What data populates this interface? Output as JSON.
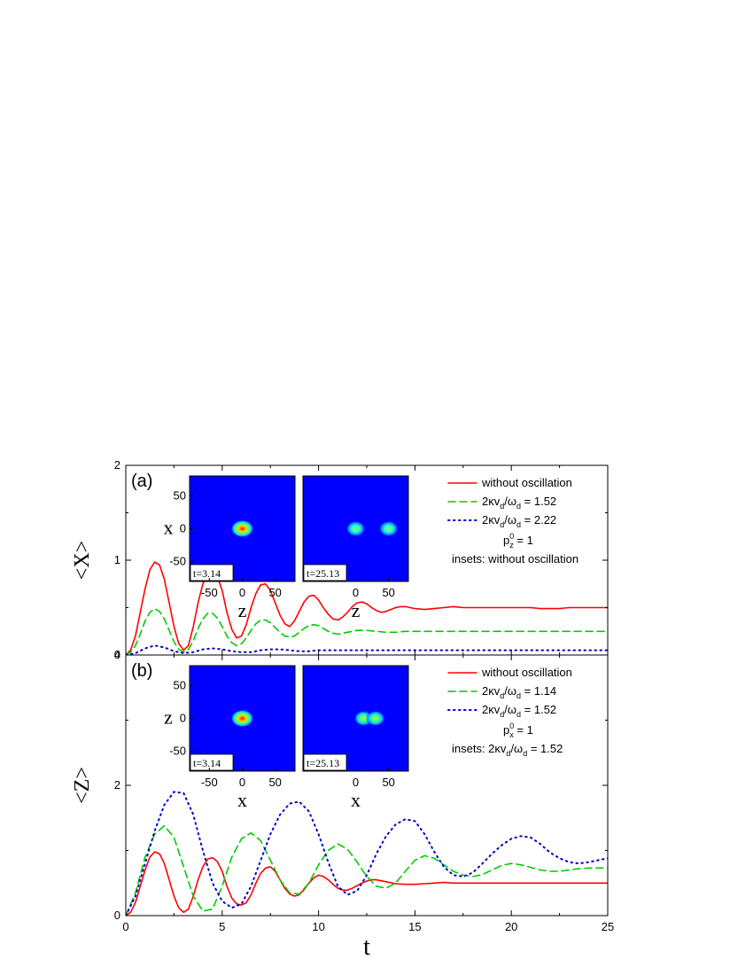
{
  "chart_data": [
    {
      "panel_label": "(a)",
      "type": "line",
      "ylabel": "<X>",
      "xlabel": "",
      "xlim": [
        0,
        25
      ],
      "ylim": [
        0,
        2
      ],
      "yticks": [
        "0",
        "1",
        "2"
      ],
      "xticks": [],
      "legend": {
        "placement": "top-right",
        "entries": [
          {
            "sym": "κ",
            "pre": "2",
            "post": "v",
            "sub": "d",
            "slash": "/ω",
            "sub2": "d",
            "value": " = 1.52"
          },
          {
            "sym": "κ",
            "pre": "2",
            "post": "v",
            "sub": "d",
            "slash": "/ω",
            "sub2": "d",
            "value": " = 2.22"
          }
        ],
        "line1": "without oscillation",
        "param_base": "p",
        "param_sub": "z",
        "param_sup": "0",
        "param_value": " = 1",
        "note": "insets: without oscillation"
      },
      "series": [
        {
          "name": "without oscillation",
          "style": "solid",
          "color": "#ff0000",
          "x": [
            0,
            0.25,
            0.5,
            0.75,
            1,
            1.25,
            1.5,
            1.75,
            2,
            2.25,
            2.5,
            2.75,
            3,
            3.25,
            3.5,
            3.75,
            4,
            4.25,
            4.5,
            4.75,
            5,
            5.25,
            5.5,
            5.75,
            6,
            6.25,
            6.5,
            6.75,
            7,
            7.25,
            7.5,
            7.75,
            8,
            8.25,
            8.5,
            8.75,
            9,
            9.25,
            9.5,
            9.75,
            10,
            10.25,
            10.5,
            10.75,
            11,
            11.25,
            11.5,
            11.75,
            12,
            12.25,
            12.5,
            12.75,
            13,
            13.25,
            13.5,
            13.75,
            14,
            14.25,
            14.5,
            14.75,
            15,
            15.5,
            16,
            16.5,
            17,
            17.5,
            18,
            18.5,
            19,
            19.5,
            20,
            20.5,
            21,
            21.5,
            22,
            22.5,
            23,
            23.5,
            24,
            24.5,
            25
          ],
          "y": [
            0,
            0.05,
            0.2,
            0.45,
            0.7,
            0.9,
            0.98,
            0.95,
            0.8,
            0.55,
            0.3,
            0.12,
            0.05,
            0.1,
            0.3,
            0.55,
            0.75,
            0.87,
            0.89,
            0.83,
            0.68,
            0.45,
            0.27,
            0.18,
            0.2,
            0.32,
            0.5,
            0.65,
            0.74,
            0.75,
            0.68,
            0.55,
            0.42,
            0.33,
            0.3,
            0.36,
            0.46,
            0.56,
            0.62,
            0.63,
            0.58,
            0.5,
            0.43,
            0.38,
            0.37,
            0.4,
            0.45,
            0.51,
            0.55,
            0.56,
            0.54,
            0.5,
            0.47,
            0.45,
            0.46,
            0.48,
            0.5,
            0.51,
            0.51,
            0.5,
            0.49,
            0.48,
            0.49,
            0.5,
            0.51,
            0.5,
            0.5,
            0.5,
            0.5,
            0.5,
            0.5,
            0.5,
            0.5,
            0.49,
            0.49,
            0.49,
            0.5,
            0.5,
            0.5,
            0.5,
            0.5
          ]
        },
        {
          "name": "2κv_d/ω_d = 1.52",
          "style": "dashed",
          "color": "#00cc00",
          "x": [
            0,
            0.25,
            0.5,
            0.75,
            1,
            1.25,
            1.5,
            1.75,
            2,
            2.25,
            2.5,
            2.75,
            3,
            3.25,
            3.5,
            3.75,
            4,
            4.25,
            4.5,
            4.75,
            5,
            5.25,
            5.5,
            5.75,
            6,
            6.25,
            6.5,
            6.75,
            7,
            7.25,
            7.5,
            7.75,
            8,
            8.25,
            8.5,
            8.75,
            9,
            9.25,
            9.5,
            9.75,
            10,
            10.25,
            10.5,
            10.75,
            11,
            11.25,
            11.5,
            11.75,
            12,
            12.5,
            13,
            13.5,
            14,
            14.5,
            15,
            15.5,
            16,
            16.5,
            17,
            17.5,
            18,
            19,
            20,
            21,
            22,
            23,
            24,
            25
          ],
          "y": [
            0,
            0.03,
            0.1,
            0.22,
            0.36,
            0.45,
            0.49,
            0.46,
            0.38,
            0.26,
            0.14,
            0.06,
            0.03,
            0.06,
            0.15,
            0.28,
            0.38,
            0.44,
            0.44,
            0.39,
            0.3,
            0.2,
            0.13,
            0.1,
            0.12,
            0.18,
            0.26,
            0.33,
            0.37,
            0.37,
            0.34,
            0.29,
            0.24,
            0.2,
            0.19,
            0.2,
            0.24,
            0.28,
            0.31,
            0.32,
            0.31,
            0.28,
            0.25,
            0.23,
            0.22,
            0.23,
            0.24,
            0.25,
            0.26,
            0.26,
            0.25,
            0.24,
            0.24,
            0.25,
            0.25,
            0.25,
            0.25,
            0.25,
            0.25,
            0.25,
            0.25,
            0.25,
            0.25,
            0.25,
            0.25,
            0.25,
            0.25,
            0.25
          ]
        },
        {
          "name": "2κv_d/ω_d = 2.22",
          "style": "dotted",
          "color": "#0000cc",
          "x": [
            0,
            0.5,
            1,
            1.5,
            2,
            2.5,
            3,
            3.5,
            4,
            4.5,
            5,
            5.5,
            6,
            6.5,
            7,
            7.5,
            8,
            8.5,
            9,
            9.5,
            10,
            11,
            12,
            13,
            14,
            15,
            16,
            17,
            18,
            19,
            20,
            21,
            22,
            23,
            24,
            25
          ],
          "y": [
            0,
            0.02,
            0.07,
            0.1,
            0.08,
            0.04,
            0.02,
            0.03,
            0.06,
            0.07,
            0.06,
            0.04,
            0.03,
            0.03,
            0.05,
            0.06,
            0.06,
            0.05,
            0.04,
            0.04,
            0.05,
            0.05,
            0.05,
            0.05,
            0.05,
            0.05,
            0.05,
            0.05,
            0.05,
            0.05,
            0.05,
            0.05,
            0.05,
            0.05,
            0.05,
            0.05
          ]
        }
      ],
      "insets": [
        {
          "time": "t=3.14",
          "xaxis": "z",
          "yaxis": "x",
          "xticks": [
            "-50",
            "0",
            "50"
          ],
          "yticks": [
            "50",
            "0",
            "-50"
          ],
          "blobs": [
            {
              "z": 0,
              "x": 0,
              "peak": 1.0
            }
          ]
        },
        {
          "time": "t=25.13",
          "xaxis": "z",
          "yaxis": "",
          "xticks": [
            "0",
            "50"
          ],
          "yticks": [],
          "blobs": [
            {
              "z": 0,
              "x": 0,
              "peak": 0.55
            },
            {
              "z": 50,
              "x": 0,
              "peak": 0.55
            }
          ]
        }
      ]
    },
    {
      "panel_label": "(b)",
      "type": "line",
      "ylabel": "<Z>",
      "xlabel": "t",
      "xlim": [
        0,
        25
      ],
      "ylim": [
        0,
        4
      ],
      "yticks": [
        "0",
        "2",
        "4"
      ],
      "xticks": [
        "0",
        "5",
        "10",
        "15",
        "20",
        "25"
      ],
      "legend": {
        "placement": "top-right",
        "entries": [
          {
            "sym": "κ",
            "pre": "2",
            "post": "v",
            "sub": "d",
            "slash": "/ω",
            "sub2": "d",
            "value": " = 1.14"
          },
          {
            "sym": "κ",
            "pre": "2",
            "post": "v",
            "sub": "d",
            "slash": "/ω",
            "sub2": "d",
            "value": " = 1.52"
          }
        ],
        "line1": "without oscillation",
        "param_base": "p",
        "param_sub": "x",
        "param_sup": "0",
        "param_value": " = 1",
        "note_pre": "insets: 2",
        "note_sym": "κ",
        "note_post": "v",
        "note_sub": "d",
        "note_slash": "/ω",
        "note_sub2": "d",
        "note_value": " = 1.52"
      },
      "series": [
        {
          "name": "without oscillation",
          "style": "solid",
          "color": "#ff0000",
          "x": [
            0,
            0.25,
            0.5,
            0.75,
            1,
            1.25,
            1.5,
            1.75,
            2,
            2.25,
            2.5,
            2.75,
            3,
            3.25,
            3.5,
            3.75,
            4,
            4.25,
            4.5,
            4.75,
            5,
            5.25,
            5.5,
            5.75,
            6,
            6.25,
            6.5,
            6.75,
            7,
            7.25,
            7.5,
            7.75,
            8,
            8.25,
            8.5,
            8.75,
            9,
            9.25,
            9.5,
            9.75,
            10,
            10.25,
            10.5,
            10.75,
            11,
            11.25,
            11.5,
            11.75,
            12,
            12.25,
            12.5,
            12.75,
            13,
            13.5,
            14,
            14.5,
            15,
            15.5,
            16,
            16.5,
            17,
            18,
            19,
            20,
            21,
            22,
            23,
            24,
            25
          ],
          "y": [
            0,
            0.05,
            0.2,
            0.45,
            0.7,
            0.9,
            0.98,
            0.95,
            0.8,
            0.55,
            0.3,
            0.12,
            0.05,
            0.1,
            0.3,
            0.55,
            0.75,
            0.87,
            0.89,
            0.83,
            0.68,
            0.45,
            0.27,
            0.18,
            0.16,
            0.2,
            0.32,
            0.5,
            0.65,
            0.73,
            0.75,
            0.68,
            0.55,
            0.42,
            0.33,
            0.3,
            0.32,
            0.4,
            0.5,
            0.58,
            0.62,
            0.6,
            0.55,
            0.48,
            0.42,
            0.39,
            0.39,
            0.42,
            0.46,
            0.5,
            0.53,
            0.55,
            0.55,
            0.52,
            0.49,
            0.48,
            0.48,
            0.49,
            0.5,
            0.51,
            0.5,
            0.5,
            0.5,
            0.5,
            0.5,
            0.5,
            0.5,
            0.5,
            0.5
          ]
        },
        {
          "name": "2κv_d/ω_d = 1.14",
          "style": "dashed",
          "color": "#00cc00",
          "x": [
            0,
            0.5,
            1,
            1.5,
            2,
            2.5,
            3,
            3.5,
            4,
            4.5,
            5,
            5.5,
            6,
            6.5,
            7,
            7.5,
            8,
            8.5,
            9,
            9.5,
            10,
            10.5,
            11,
            11.5,
            12,
            12.5,
            13,
            13.5,
            14,
            14.5,
            15,
            15.5,
            16,
            16.5,
            17,
            17.5,
            18,
            18.5,
            19,
            19.5,
            20,
            20.5,
            21,
            21.5,
            22,
            22.5,
            23,
            23.5,
            24,
            24.5,
            25
          ],
          "y": [
            0,
            0.35,
            0.9,
            1.25,
            1.38,
            1.2,
            0.75,
            0.3,
            0.07,
            0.1,
            0.45,
            0.9,
            1.18,
            1.27,
            1.15,
            0.85,
            0.55,
            0.35,
            0.33,
            0.5,
            0.78,
            1.0,
            1.1,
            1.02,
            0.82,
            0.6,
            0.45,
            0.42,
            0.5,
            0.68,
            0.85,
            0.92,
            0.88,
            0.78,
            0.68,
            0.62,
            0.6,
            0.63,
            0.7,
            0.77,
            0.8,
            0.78,
            0.74,
            0.7,
            0.68,
            0.68,
            0.7,
            0.72,
            0.73,
            0.73,
            0.73
          ]
        },
        {
          "name": "2κv_d/ω_d = 1.52",
          "style": "dotted",
          "color": "#0000cc",
          "x": [
            0,
            0.5,
            1,
            1.5,
            2,
            2.5,
            3,
            3.5,
            4,
            4.5,
            5,
            5.5,
            6,
            6.5,
            7,
            7.5,
            8,
            8.5,
            9,
            9.5,
            10,
            10.5,
            11,
            11.5,
            12,
            12.5,
            13,
            13.5,
            14,
            14.5,
            15,
            15.5,
            16,
            16.5,
            17,
            17.5,
            18,
            18.5,
            19,
            19.5,
            20,
            20.5,
            21,
            21.5,
            22,
            22.5,
            23,
            23.5,
            24,
            24.5,
            25
          ],
          "y": [
            0,
            0.3,
            0.8,
            1.3,
            1.7,
            1.9,
            1.88,
            1.55,
            1.0,
            0.5,
            0.22,
            0.12,
            0.18,
            0.45,
            0.85,
            1.25,
            1.55,
            1.72,
            1.75,
            1.6,
            1.25,
            0.82,
            0.45,
            0.32,
            0.38,
            0.62,
            0.95,
            1.22,
            1.4,
            1.48,
            1.45,
            1.25,
            0.98,
            0.75,
            0.62,
            0.6,
            0.66,
            0.8,
            0.95,
            1.08,
            1.18,
            1.22,
            1.2,
            1.1,
            0.97,
            0.88,
            0.82,
            0.8,
            0.82,
            0.85,
            0.88
          ]
        }
      ],
      "insets": [
        {
          "time": "t=3.14",
          "xaxis": "x",
          "yaxis": "z",
          "xticks": [
            "-50",
            "0",
            "50"
          ],
          "yticks": [
            "50",
            "0",
            "-50"
          ],
          "blobs": [
            {
              "z": 0,
              "x": 0,
              "peak": 1.0
            }
          ]
        },
        {
          "time": "t=25.13",
          "xaxis": "x",
          "yaxis": "",
          "xticks": [
            "0",
            "50"
          ],
          "yticks": [],
          "blobs": [
            {
              "z": 12,
              "x": 0,
              "peak": 0.75
            },
            {
              "z": 30,
              "x": 0,
              "peak": 0.75
            }
          ]
        }
      ]
    }
  ]
}
